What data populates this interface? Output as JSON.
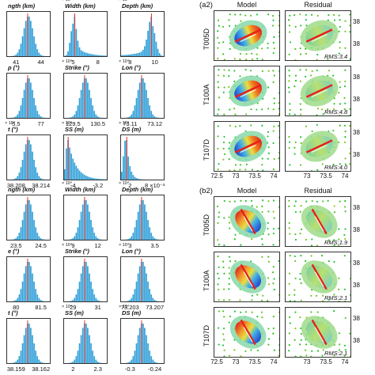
{
  "histograms_a": [
    {
      "title": "ngth (km)",
      "exp": "",
      "ticks": [
        "41",
        "44"
      ],
      "shape": "normal"
    },
    {
      "title": "Width (km)",
      "exp": "× 10⁴",
      "ticks": [
        "5",
        "8"
      ],
      "shape": "skew"
    },
    {
      "title": "Depth (km)",
      "exp": "× 10⁴",
      "ticks": [
        "8",
        "10"
      ],
      "shape": "leftskew"
    },
    {
      "title": "p (°)",
      "exp": "",
      "ticks": [
        "5.5",
        "77"
      ],
      "shape": "normal"
    },
    {
      "title": "Strike (°)",
      "exp": "× 10⁴",
      "ticks": [
        "129.5",
        "130.5"
      ],
      "shape": "normal"
    },
    {
      "title": "Lon (°)",
      "exp": "× 10⁴",
      "ticks": [
        "73.11",
        "73.12"
      ],
      "shape": "normal"
    },
    {
      "title": "t (°)",
      "exp": "× 10⁴",
      "ticks": [
        "38.208",
        "38.214"
      ],
      "shape": "normal"
    },
    {
      "title": "SS (m)",
      "exp": "× 10⁴",
      "ticks": [
        "-4",
        "-3.2"
      ],
      "shape": "decay"
    },
    {
      "title": "DS (m)",
      "exp": "× 10⁴",
      "ticks": [
        "2",
        "8 ×10⁻³"
      ],
      "shape": "spike"
    }
  ],
  "histograms_b": [
    {
      "title": "ngth (km)",
      "exp": "",
      "ticks": [
        "23.5",
        "24.5"
      ],
      "shape": "normal"
    },
    {
      "title": "Width (km)",
      "exp": "× 10⁴",
      "ticks": [
        "9",
        "12"
      ],
      "shape": "normal"
    },
    {
      "title": "Depth (km)",
      "exp": "× 10⁴",
      "ticks": [
        "3",
        "3.5"
      ],
      "shape": "normal"
    },
    {
      "title": "e (°)",
      "exp": "",
      "ticks": [
        "80",
        "81.5"
      ],
      "shape": "normal"
    },
    {
      "title": "Strike (°)",
      "exp": "× 10⁴",
      "ticks": [
        "29",
        "31"
      ],
      "shape": "normal"
    },
    {
      "title": "Lon (°)",
      "exp": "× 10⁴",
      "ticks": [
        "73.203",
        "73.207"
      ],
      "shape": "normal"
    },
    {
      "title": "t (°)",
      "exp": "",
      "ticks": [
        "38.159",
        "38.162"
      ],
      "shape": "normal"
    },
    {
      "title": "SS (m)",
      "exp": "× 10⁴",
      "ticks": [
        "2",
        "2.3"
      ],
      "shape": "normal"
    },
    {
      "title": "DS (m)",
      "exp": "× 10⁴",
      "ticks": [
        "-0.3",
        "-0.24"
      ],
      "shape": "normal"
    }
  ],
  "maps_a": {
    "label": "(a2)",
    "col_model": "Model",
    "col_residual": "Residual",
    "rows": [
      {
        "track": "T005D",
        "rms": "RMS:3.4",
        "lat_top": "38",
        "lat_bot": "38"
      },
      {
        "track": "T100A",
        "rms": "RMS:4.8",
        "lat_top": "38",
        "lat_bot": "38"
      },
      {
        "track": "T107D",
        "rms": "RMS:4.0",
        "lat_top": "38",
        "lat_bot": "38"
      }
    ],
    "xticks": [
      "72.5",
      "73",
      "73.5",
      "74"
    ]
  },
  "maps_b": {
    "label": "(b2)",
    "col_model": "Model",
    "col_residual": "Residual",
    "rows": [
      {
        "track": "T005D",
        "rms": "RMS:1.9",
        "lat_top": "38",
        "lat_bot": "38"
      },
      {
        "track": "T100A",
        "rms": "RMS:2.1",
        "lat_top": "38",
        "lat_bot": "38"
      },
      {
        "track": "T107D",
        "rms": "RMS:2.1",
        "lat_top": "38",
        "lat_bot": "38"
      }
    ],
    "xticks": [
      "72.5",
      "73",
      "73.5",
      "74"
    ]
  },
  "colors": {
    "bar": "#2f9fd8",
    "median_line": "#e0322a",
    "fault": "#e8201c"
  }
}
